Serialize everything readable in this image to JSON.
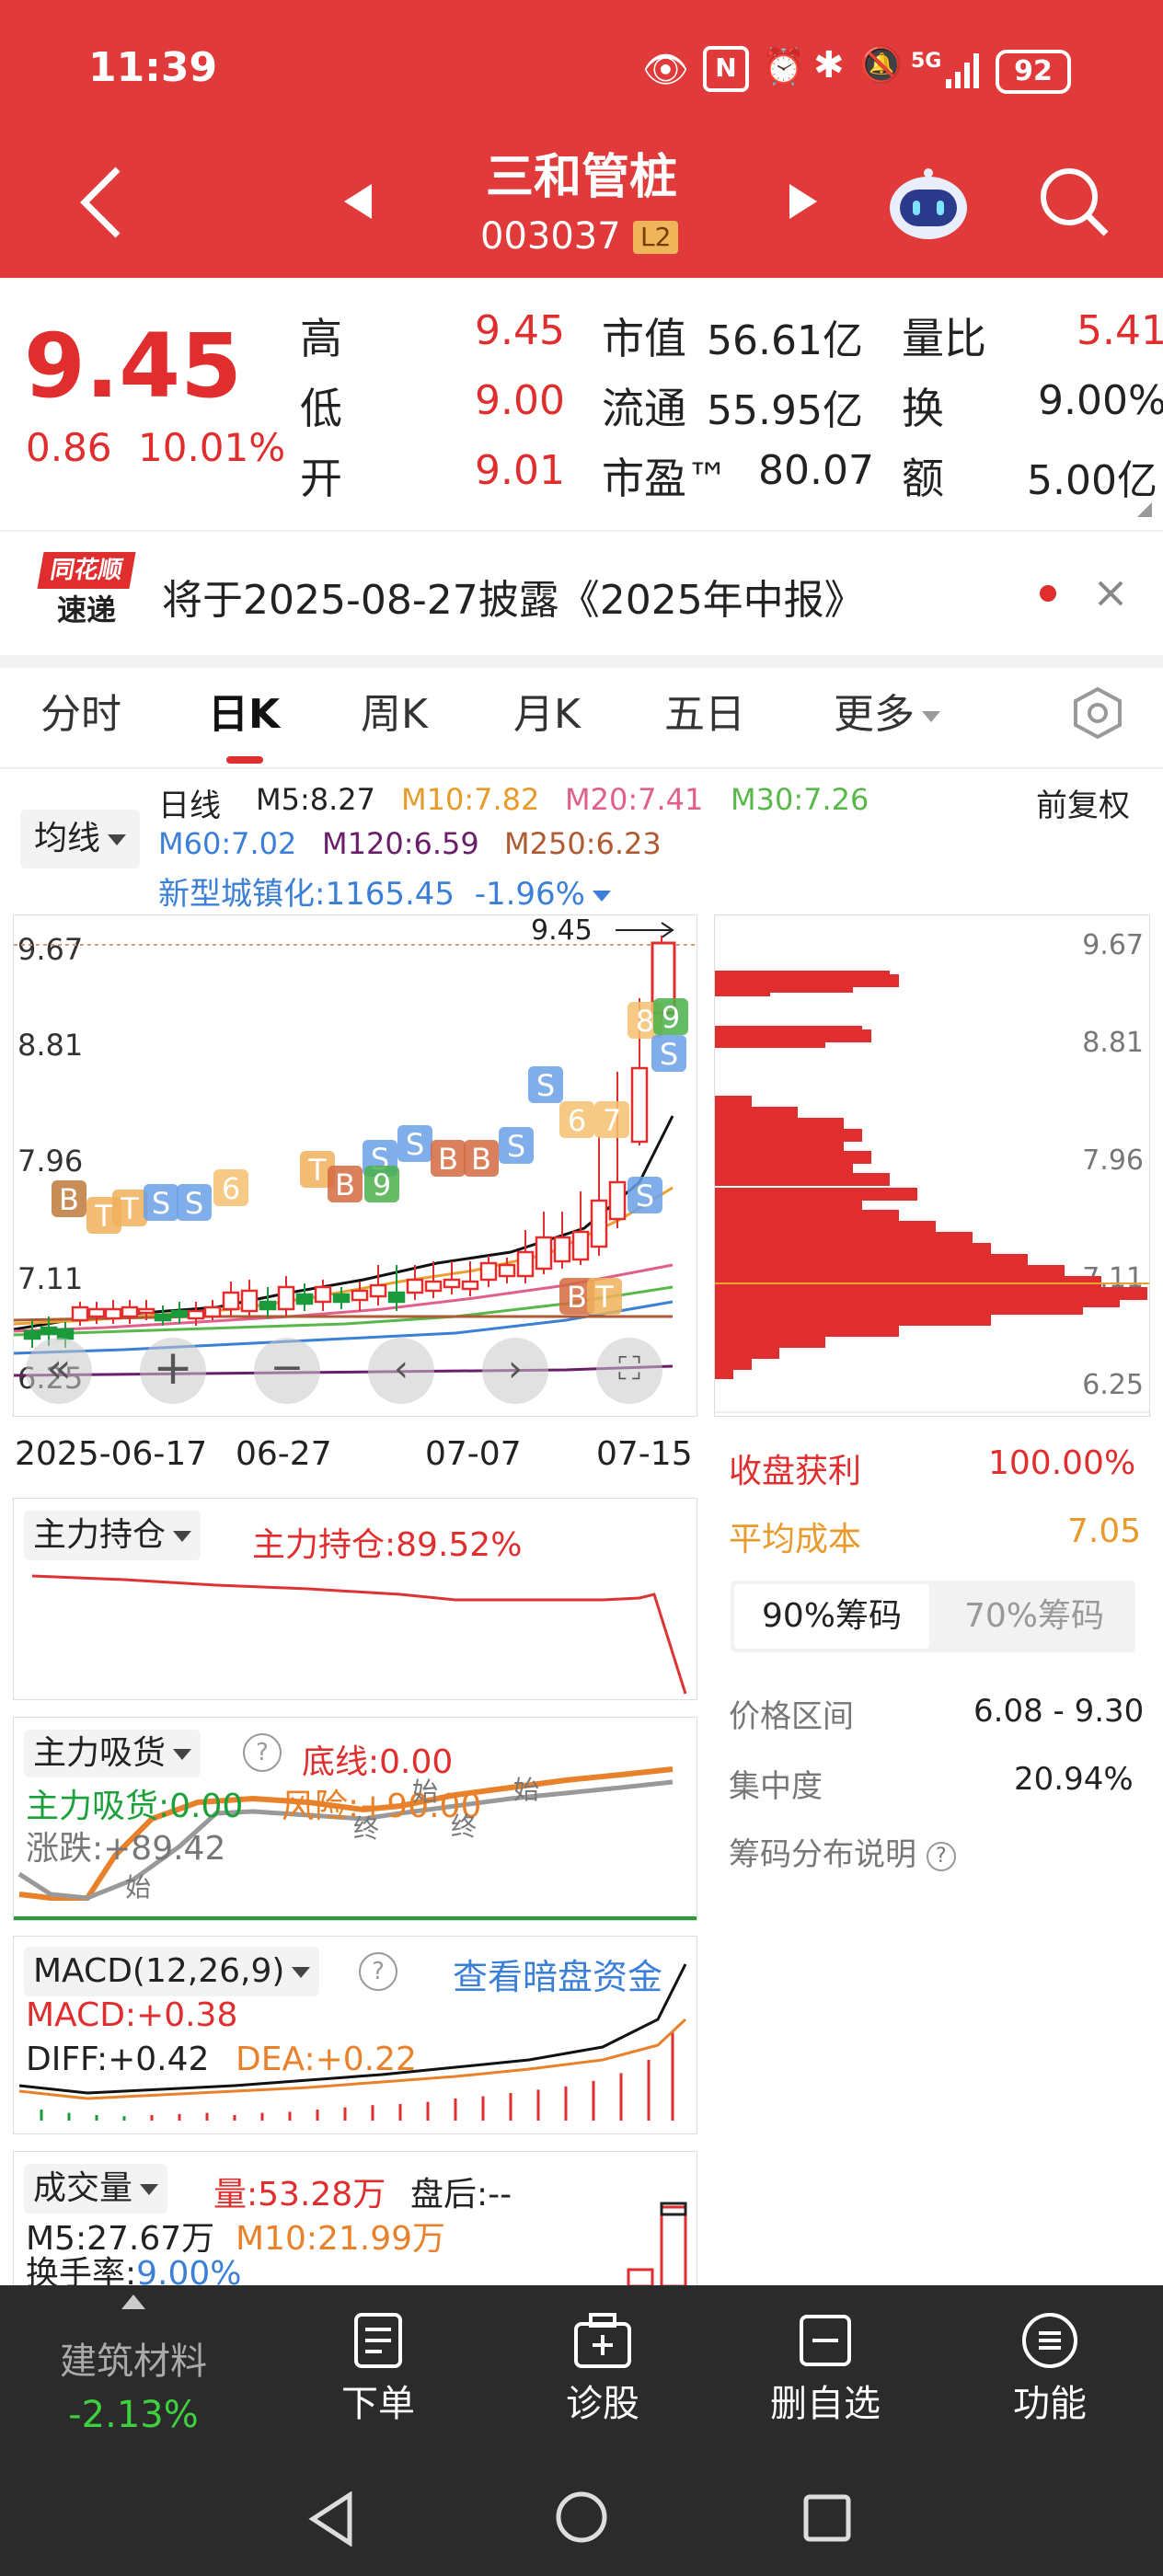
{
  "status_bar": {
    "time": "11:39",
    "network": "5G",
    "battery": "92"
  },
  "header": {
    "stock_name": "三和管桩",
    "stock_code": "003037",
    "level_badge": "L2"
  },
  "quote": {
    "price": "9.45",
    "change": "0.86",
    "change_pct": "10.01%",
    "high_label": "高",
    "high": "9.45",
    "low_label": "低",
    "low": "9.00",
    "open_label": "开",
    "open": "9.01",
    "mcap_label": "市值",
    "mcap": "56.61亿",
    "float_label": "流通",
    "float": "55.95亿",
    "pe_label": "市盈™",
    "pe": "80.07",
    "vr_label": "量比",
    "vr": "5.41",
    "turn_label": "换",
    "turn": "9.00%",
    "amt_label": "额",
    "amt": "5.00亿"
  },
  "notice": {
    "brand_top": "同花顺",
    "brand_bottom": "速递",
    "text": "将于2025-08-27披露《2025年中报》"
  },
  "tabs": [
    "分时",
    "日K",
    "周K",
    "月K",
    "五日",
    "更多"
  ],
  "active_tab": "日K",
  "kline": {
    "ma_selector": "均线",
    "period": "日线",
    "adjust": "前复权",
    "m5": "M5:8.27",
    "m10": "M10:7.82",
    "m20": "M20:7.41",
    "m30": "M30:7.26",
    "m60": "M60:7.02",
    "m120": "M120:6.59",
    "m250": "M250:6.23",
    "sector": "新型城镇化:1165.45",
    "sector_pct": "-1.96%",
    "price_ticks": [
      "9.67",
      "8.81",
      "7.96",
      "7.11",
      "6.25"
    ],
    "high_marker": "9.45",
    "dates": [
      "2025-06-17",
      "06-27",
      "07-07",
      "07-15"
    ]
  },
  "chips": {
    "ticks": [
      "9.67",
      "8.81",
      "7.96",
      "7.11",
      "6.25"
    ],
    "profit_label": "收盘获利",
    "profit": "100.00%",
    "avg_label": "平均成本",
    "avg": "7.05",
    "tab90": "90%筹码",
    "tab70": "70%筹码",
    "range_label": "价格区间",
    "range": "6.08 - 9.30",
    "conc_label": "集中度",
    "conc": "20.94%",
    "explain": "筹码分布说明"
  },
  "ind1": {
    "name": "主力持仓",
    "value": "主力持仓:89.52%"
  },
  "ind2": {
    "name": "主力吸货",
    "bottom": "底线:0.00",
    "absorb": "主力吸货:0.00",
    "risk": "风险:+90.00",
    "chg": "涨跌:+89.42",
    "m_start": "始",
    "m_end": "终"
  },
  "macd": {
    "name": "MACD(12,26,9)",
    "link": "查看暗盘资金",
    "macd": "MACD:+0.38",
    "diff": "DIFF:+0.42",
    "dea": "DEA:+0.22"
  },
  "vol": {
    "name": "成交量",
    "vol": "量:53.28万",
    "after": "盘后:--",
    "m5": "M5:27.67万",
    "m10": "M10:21.99万",
    "turn": "换手率:9.00%"
  },
  "toolbar": {
    "sector_name": "建筑材料",
    "sector_pct": "-2.13%",
    "order": "下单",
    "diag": "诊股",
    "del": "删自选",
    "func": "功能"
  },
  "chart_data": {
    "type": "candlestick",
    "title": "",
    "x": [
      "2025-06-17",
      "06-27",
      "07-07",
      "07-15"
    ],
    "ylim": [
      6.25,
      9.67
    ],
    "close_last": 9.45,
    "ma": {
      "M5": 8.27,
      "M10": 7.82,
      "M20": 7.41,
      "M30": 7.26,
      "M60": 7.02,
      "M120": 6.59,
      "M250": 6.23
    }
  }
}
